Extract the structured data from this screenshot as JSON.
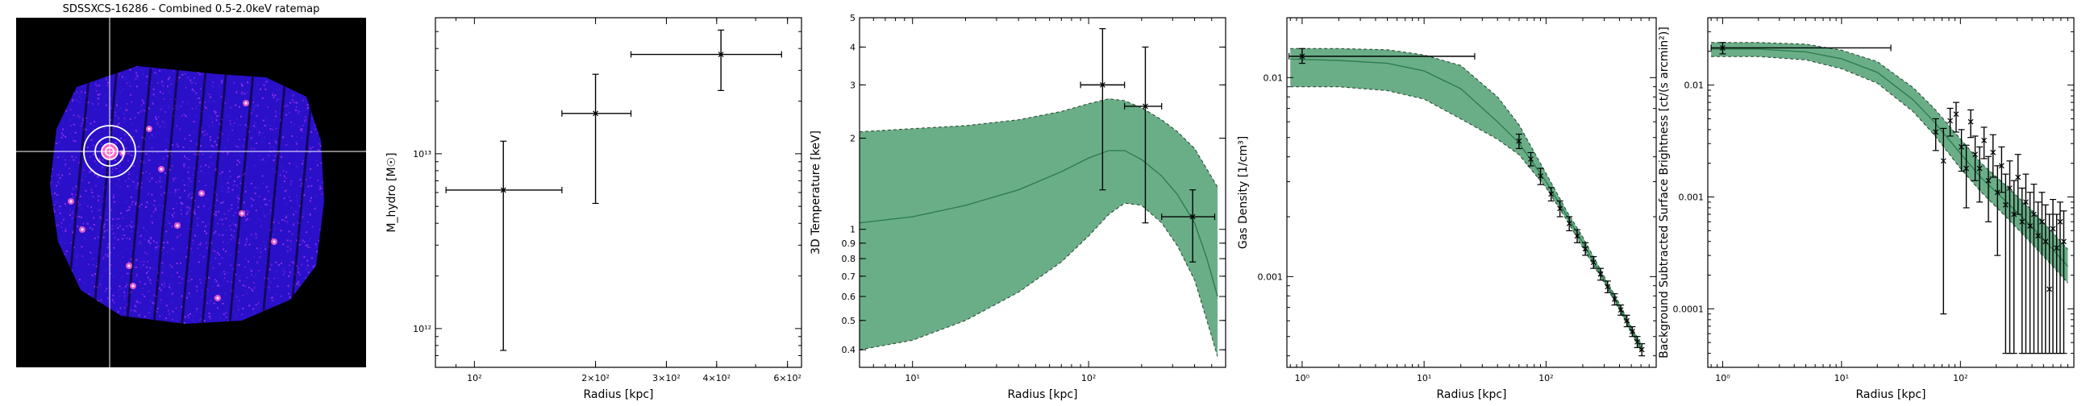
{
  "figure": {
    "image_panel": {
      "title": "SDSSXCS-16286 - Combined 0.5-2.0keV ratemap"
    }
  },
  "chart_data": [
    {
      "type": "heatmap",
      "title": "SDSSXCS-16286 - Combined 0.5-2.0keV ratemap",
      "description_colors": {
        "background": "#000000",
        "low": "#2a10c8",
        "mid": "#6a1ee0",
        "high": "#ff66cc",
        "peak": "#ffe6f5"
      },
      "crosshair": true,
      "annotations": [
        "aperture circles at cluster centre"
      ]
    },
    {
      "type": "scatter",
      "xlabel": "Radius [kpc]",
      "ylabel": "M_hydro [M☉]",
      "xscale": "log",
      "yscale": "log",
      "xlim": [
        80,
        650
      ],
      "ylim": [
        600000000000.0,
        60000000000000.0
      ],
      "xticks": [
        {
          "v": 100,
          "l": "10²"
        },
        {
          "v": 200,
          "l": "2×10²"
        },
        {
          "v": 300,
          "l": "3×10²"
        },
        {
          "v": 400,
          "l": "4×10²"
        },
        {
          "v": 600,
          "l": "6×10²"
        }
      ],
      "yticks": [
        {
          "v": 1000000000000.0,
          "l": "10¹²"
        },
        {
          "v": 10000000000000.0,
          "l": "10¹³"
        }
      ],
      "points": [
        {
          "x": 118,
          "xlo": 85,
          "xhi": 165,
          "y": 6200000000000.0,
          "ylo": 750000000000.0,
          "yhi": 11800000000000.0
        },
        {
          "x": 200,
          "xlo": 165,
          "xhi": 245,
          "y": 17000000000000.0,
          "ylo": 5200000000000.0,
          "yhi": 28500000000000.0
        },
        {
          "x": 410,
          "xlo": 245,
          "xhi": 580,
          "y": 37000000000000.0,
          "ylo": 23000000000000.0,
          "yhi": 51000000000000.0
        }
      ],
      "color": "#000000"
    },
    {
      "type": "area",
      "xlabel": "Radius [kpc]",
      "ylabel": "3D Temperature [keV]",
      "xscale": "log",
      "yscale": "log",
      "xlim": [
        5,
        600
      ],
      "ylim": [
        0.35,
        5
      ],
      "xticks": [
        {
          "v": 10,
          "l": "10¹"
        },
        {
          "v": 100,
          "l": "10²"
        }
      ],
      "yticks": [
        {
          "v": 0.4,
          "l": "0.4"
        },
        {
          "v": 0.5,
          "l": "0.5"
        },
        {
          "v": 0.6,
          "l": "0.6"
        },
        {
          "v": 0.7,
          "l": "0.7"
        },
        {
          "v": 0.8,
          "l": "0.8"
        },
        {
          "v": 0.9,
          "l": "0.9"
        },
        {
          "v": 1,
          "l": "1"
        },
        {
          "v": 2,
          "l": "2"
        },
        {
          "v": 3,
          "l": "3"
        },
        {
          "v": 4,
          "l": "4"
        },
        {
          "v": 5,
          "l": "5"
        }
      ],
      "band": {
        "x": [
          5,
          10,
          20,
          40,
          70,
          100,
          130,
          160,
          200,
          260,
          320,
          400,
          470,
          540
        ],
        "lower": [
          0.4,
          0.43,
          0.5,
          0.62,
          0.78,
          0.95,
          1.12,
          1.22,
          1.2,
          1.05,
          0.88,
          0.68,
          0.5,
          0.38
        ],
        "mid": [
          1.05,
          1.1,
          1.2,
          1.35,
          1.55,
          1.72,
          1.82,
          1.82,
          1.7,
          1.5,
          1.3,
          1.05,
          0.8,
          0.6
        ],
        "upper": [
          2.1,
          2.15,
          2.2,
          2.3,
          2.45,
          2.6,
          2.7,
          2.66,
          2.52,
          2.3,
          2.1,
          1.85,
          1.58,
          1.38
        ]
      },
      "points": [
        {
          "x": 120,
          "xlo": 90,
          "xhi": 160,
          "y": 3.0,
          "ylo": 1.35,
          "yhi": 4.6
        },
        {
          "x": 210,
          "xlo": 160,
          "xhi": 260,
          "y": 2.55,
          "ylo": 1.05,
          "yhi": 4.0
        },
        {
          "x": 390,
          "xlo": 260,
          "xhi": 520,
          "y": 1.1,
          "ylo": 0.78,
          "yhi": 1.35
        }
      ],
      "band_color": "#6aae88",
      "line_color": "#2e7d4f"
    },
    {
      "type": "area",
      "xlabel": "Radius [kpc]",
      "ylabel": "Gas Density [1/cm³]",
      "xscale": "log",
      "yscale": "log",
      "xlim": [
        0.75,
        800
      ],
      "ylim": [
        0.00035,
        0.02
      ],
      "xticks": [
        {
          "v": 1,
          "l": "10⁰"
        },
        {
          "v": 10,
          "l": "10¹"
        },
        {
          "v": 100,
          "l": "10²"
        }
      ],
      "yticks": [
        {
          "v": 0.001,
          "l": "0.001"
        },
        {
          "v": 0.01,
          "l": "0.01"
        }
      ],
      "band": {
        "x": [
          0.8,
          2,
          5,
          10,
          20,
          40,
          60,
          100,
          150,
          200,
          300,
          400,
          500,
          600
        ],
        "lower": [
          0.009,
          0.009,
          0.0086,
          0.0078,
          0.0062,
          0.0049,
          0.0041,
          0.0028,
          0.0019,
          0.0014,
          0.00093,
          0.00068,
          0.00052,
          0.00042
        ],
        "mid": [
          0.0124,
          0.0122,
          0.0118,
          0.0108,
          0.0088,
          0.006,
          0.0047,
          0.003,
          0.002,
          0.00148,
          0.00096,
          0.0007,
          0.00054,
          0.00044
        ],
        "upper": [
          0.014,
          0.014,
          0.0138,
          0.013,
          0.0115,
          0.008,
          0.0058,
          0.0033,
          0.0021,
          0.00158,
          0.001,
          0.00073,
          0.00056,
          0.00046
        ]
      },
      "points": [
        {
          "x": 1.0,
          "xlo": 0.78,
          "xhi": 26,
          "y": 0.0128,
          "ylo": 0.0118,
          "yhi": 0.014
        },
        {
          "x": 60,
          "y": 0.0048,
          "ylo": 0.0044,
          "yhi": 0.0052
        },
        {
          "x": 75,
          "y": 0.0039,
          "ylo": 0.0036,
          "yhi": 0.0042
        },
        {
          "x": 90,
          "y": 0.0032,
          "ylo": 0.0029,
          "yhi": 0.0035
        },
        {
          "x": 110,
          "y": 0.0026,
          "ylo": 0.0024,
          "yhi": 0.0028
        },
        {
          "x": 130,
          "y": 0.0022,
          "ylo": 0.002,
          "yhi": 0.0024
        },
        {
          "x": 155,
          "y": 0.00185,
          "ylo": 0.0017,
          "yhi": 0.002
        },
        {
          "x": 180,
          "y": 0.0016,
          "ylo": 0.00148,
          "yhi": 0.00172
        },
        {
          "x": 210,
          "y": 0.00138,
          "ylo": 0.00128,
          "yhi": 0.00148
        },
        {
          "x": 245,
          "y": 0.00118,
          "ylo": 0.0011,
          "yhi": 0.00126
        },
        {
          "x": 280,
          "y": 0.00103,
          "ylo": 0.00096,
          "yhi": 0.0011
        },
        {
          "x": 320,
          "y": 0.00089,
          "ylo": 0.00083,
          "yhi": 0.00095
        },
        {
          "x": 365,
          "y": 0.00077,
          "ylo": 0.00072,
          "yhi": 0.00082
        },
        {
          "x": 410,
          "y": 0.00068,
          "ylo": 0.00064,
          "yhi": 0.00072
        },
        {
          "x": 460,
          "y": 0.0006,
          "ylo": 0.00056,
          "yhi": 0.00064
        },
        {
          "x": 510,
          "y": 0.00053,
          "ylo": 0.0005,
          "yhi": 0.00056
        },
        {
          "x": 560,
          "y": 0.00047,
          "ylo": 0.00044,
          "yhi": 0.0005
        },
        {
          "x": 610,
          "y": 0.00043,
          "ylo": 0.0004,
          "yhi": 0.00046
        }
      ],
      "band_color": "#6aae88",
      "line_color": "#2e7d4f"
    },
    {
      "type": "area",
      "xlabel": "Radius [kpc]",
      "ylabel": "Background Subtracted Surface Brightness [ct/(s arcmin²)]",
      "xscale": "log",
      "yscale": "log",
      "xlim": [
        0.75,
        900
      ],
      "ylim": [
        3e-05,
        0.04
      ],
      "xticks": [
        {
          "v": 1,
          "l": "10⁰"
        },
        {
          "v": 10,
          "l": "10¹"
        },
        {
          "v": 100,
          "l": "10²"
        }
      ],
      "yticks": [
        {
          "v": 0.0001,
          "l": "0.0001"
        },
        {
          "v": 0.001,
          "l": "0.001"
        },
        {
          "v": 0.01,
          "l": "0.01"
        }
      ],
      "band": {
        "x": [
          0.8,
          2,
          5,
          10,
          20,
          40,
          60,
          100,
          150,
          250,
          400,
          600,
          800
        ],
        "lower": [
          0.018,
          0.018,
          0.0168,
          0.014,
          0.0104,
          0.0058,
          0.0036,
          0.0018,
          0.0011,
          0.00064,
          0.00038,
          0.00024,
          0.00017
        ],
        "mid": [
          0.021,
          0.021,
          0.0198,
          0.0172,
          0.013,
          0.0074,
          0.0047,
          0.00245,
          0.00148,
          0.00088,
          0.00054,
          0.00034,
          0.00024
        ],
        "upper": [
          0.024,
          0.024,
          0.0232,
          0.0205,
          0.0162,
          0.0095,
          0.0062,
          0.0033,
          0.002,
          0.00122,
          0.00076,
          0.00048,
          0.00034
        ]
      },
      "points": [
        {
          "x": 1.0,
          "xlo": 0.8,
          "xhi": 26,
          "y": 0.0215,
          "ylo": 0.019,
          "yhi": 0.024
        },
        {
          "x": 62,
          "y": 0.0038,
          "ylo": 0.0026,
          "yhi": 0.005
        },
        {
          "x": 72,
          "y": 0.0021,
          "ylo": 9e-05,
          "yhi": 0.0041
        },
        {
          "x": 82,
          "y": 0.0048,
          "ylo": 0.0035,
          "yhi": 0.0062
        },
        {
          "x": 92,
          "y": 0.0055,
          "ylo": 0.0038,
          "yhi": 0.007
        },
        {
          "x": 102,
          "y": 0.0028,
          "ylo": 0.0017,
          "yhi": 0.004
        },
        {
          "x": 112,
          "y": 0.0018,
          "ylo": 0.0008,
          "yhi": 0.0029
        },
        {
          "x": 122,
          "y": 0.0047,
          "ylo": 0.0034,
          "yhi": 0.006
        },
        {
          "x": 133,
          "y": 0.0024,
          "ylo": 0.0014,
          "yhi": 0.0035
        },
        {
          "x": 145,
          "y": 0.0018,
          "ylo": 0.0009,
          "yhi": 0.0028
        },
        {
          "x": 158,
          "y": 0.0032,
          "ylo": 0.0022,
          "yhi": 0.0042
        },
        {
          "x": 172,
          "y": 0.0014,
          "ylo": 0.0006,
          "yhi": 0.0023
        },
        {
          "x": 188,
          "y": 0.0025,
          "ylo": 0.0015,
          "yhi": 0.0036
        },
        {
          "x": 205,
          "y": 0.0011,
          "ylo": 0.0003,
          "yhi": 0.0019
        },
        {
          "x": 222,
          "y": 0.0019,
          "ylo": 0.0011,
          "yhi": 0.0028
        },
        {
          "x": 240,
          "y": 0.00085,
          "ylo": 4e-05,
          "yhi": 0.0016
        },
        {
          "x": 260,
          "y": 0.0012,
          "ylo": 4e-05,
          "yhi": 0.0021
        },
        {
          "x": 282,
          "y": 0.0007,
          "ylo": 4e-05,
          "yhi": 0.0014
        },
        {
          "x": 305,
          "y": 0.0015,
          "ylo": 0.0007,
          "yhi": 0.0024
        },
        {
          "x": 330,
          "y": 0.0006,
          "ylo": 4e-05,
          "yhi": 0.0012
        },
        {
          "x": 355,
          "y": 0.0009,
          "ylo": 4e-05,
          "yhi": 0.0016
        },
        {
          "x": 385,
          "y": 0.00055,
          "ylo": 4e-05,
          "yhi": 0.0011
        },
        {
          "x": 415,
          "y": 0.0007,
          "ylo": 4e-05,
          "yhi": 0.0013
        },
        {
          "x": 450,
          "y": 0.00045,
          "ylo": 4e-05,
          "yhi": 0.0009
        },
        {
          "x": 485,
          "y": 0.0006,
          "ylo": 4e-05,
          "yhi": 0.0011
        },
        {
          "x": 520,
          "y": 0.0004,
          "ylo": 4e-05,
          "yhi": 0.00085
        },
        {
          "x": 560,
          "y": 0.00015,
          "ylo": 4e-05,
          "yhi": 0.0007
        },
        {
          "x": 600,
          "y": 0.00052,
          "ylo": 4e-05,
          "yhi": 0.00095
        },
        {
          "x": 645,
          "y": 0.00035,
          "ylo": 4e-05,
          "yhi": 0.0007
        },
        {
          "x": 690,
          "y": 0.0006,
          "ylo": 4e-05,
          "yhi": 0.0009
        },
        {
          "x": 740,
          "y": 0.0004,
          "ylo": 4e-05,
          "yhi": 0.00075
        }
      ],
      "band_color": "#6aae88",
      "line_color": "#2e7d4f"
    }
  ]
}
